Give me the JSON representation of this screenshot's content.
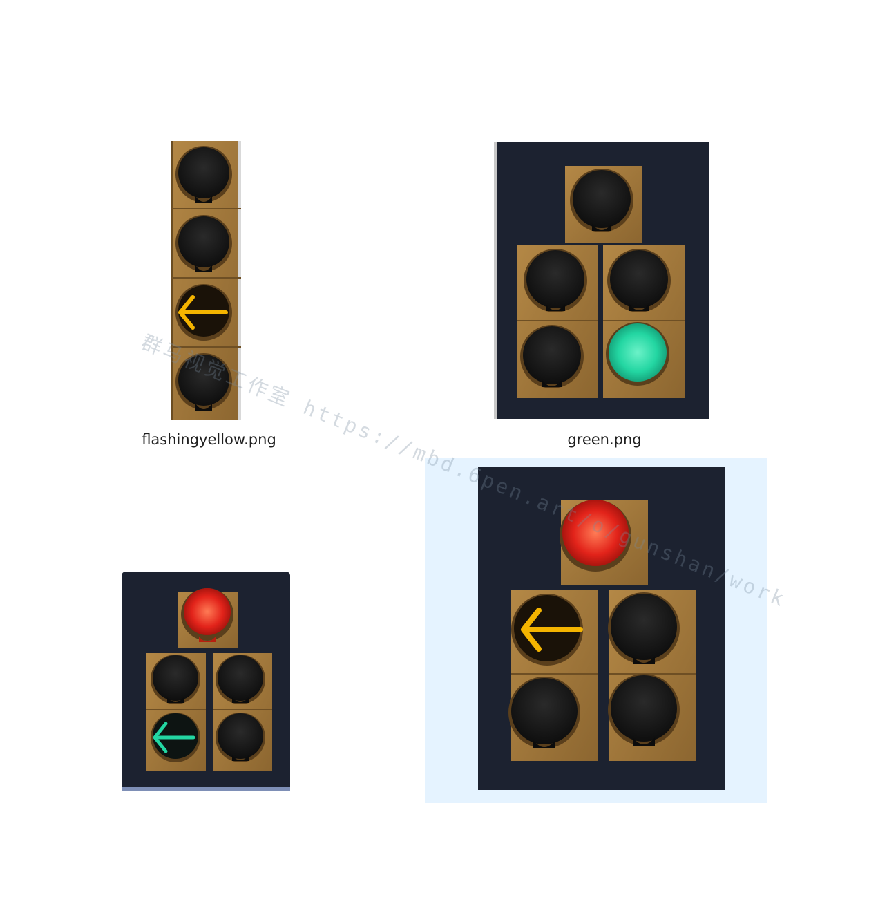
{
  "files": [
    {
      "name": "flashingyellow.png",
      "thumbnail": "traffic-light-vertical-four-lamp-yellow-left-arrow"
    },
    {
      "name": "green.png",
      "thumbnail": "traffic-light-doghouse-five-lamp-green-ball"
    },
    {
      "name": "",
      "thumbnail": "traffic-light-doghouse-red-and-green-left-arrow"
    },
    {
      "name": "",
      "thumbnail": "traffic-light-doghouse-red-and-yellow-left-arrow",
      "state": "selected"
    }
  ],
  "watermark": "群马视觉工作室 https://mbd.6pen.art/o/gunshan/work",
  "colors": {
    "housing": "#1c2230",
    "panel_amber": "#a27a3a",
    "lens_off": "#161616",
    "lit_yellow": "#f4b400",
    "lit_green": "#23d6a2",
    "lit_red": "#e2231a",
    "selection": "#e5f3ff",
    "caption_text": "#1f1f1f"
  }
}
